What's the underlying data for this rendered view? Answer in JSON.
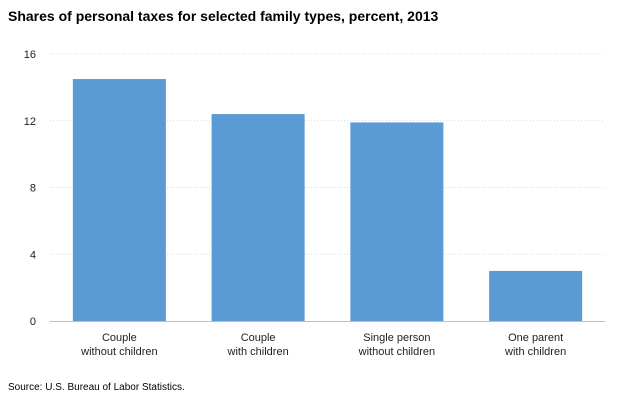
{
  "title": "Shares of personal taxes for selected family types, percent, 2013",
  "source": "Source: U.S. Bureau of Labor Statistics.",
  "chart_data": {
    "type": "bar",
    "title": "Shares of personal taxes for selected family types, percent, 2013",
    "xlabel": "",
    "ylabel": "",
    "categories": [
      [
        "Couple",
        "without children"
      ],
      [
        "Couple",
        "with children"
      ],
      [
        "Single person",
        "without children"
      ],
      [
        "One parent",
        "with children"
      ]
    ],
    "values": [
      14.5,
      12.4,
      11.9,
      3.0
    ],
    "ylim": [
      0,
      16
    ],
    "yticks": [
      0,
      4,
      8,
      12,
      16
    ],
    "grid": true,
    "bar_color": "#5b9bd5",
    "gridline_color": "#d9d9d9"
  }
}
